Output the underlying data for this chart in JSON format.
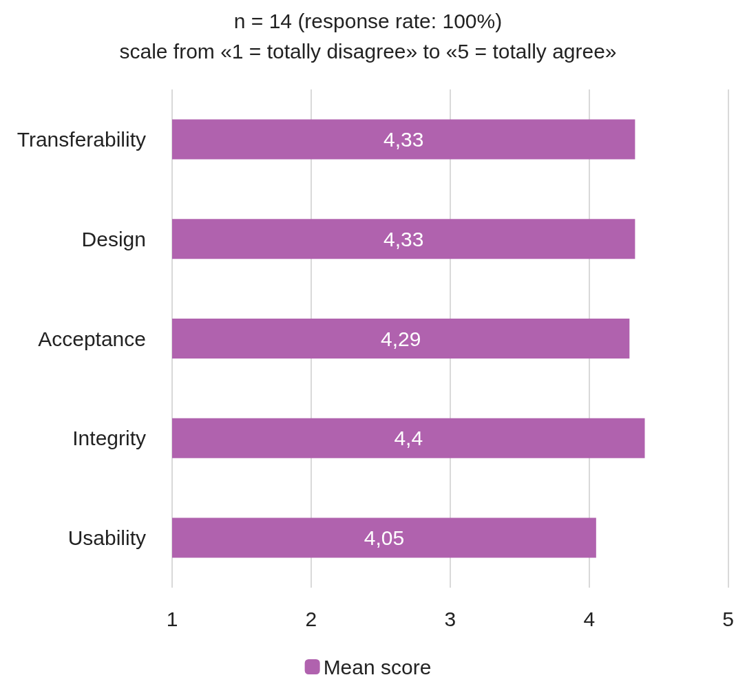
{
  "chart_data": {
    "type": "bar",
    "orientation": "horizontal",
    "title": "n = 14 (response rate: 100%)",
    "subtitle": "scale from «1 = totally disagree» to «5 = totally agree»",
    "categories": [
      "Transferability",
      "Design",
      "Acceptance",
      "Integrity",
      "Usability"
    ],
    "series": [
      {
        "name": "Mean score",
        "color": "#b062ae",
        "values": [
          4.33,
          4.33,
          4.29,
          4.4,
          4.05
        ],
        "value_labels": [
          "4,33",
          "4,33",
          "4,29",
          "4,4",
          "4,05"
        ]
      }
    ],
    "xlim": [
      1,
      5
    ],
    "xticks": [
      1,
      2,
      3,
      4,
      5
    ],
    "grid": "x",
    "legend": "bottom"
  }
}
